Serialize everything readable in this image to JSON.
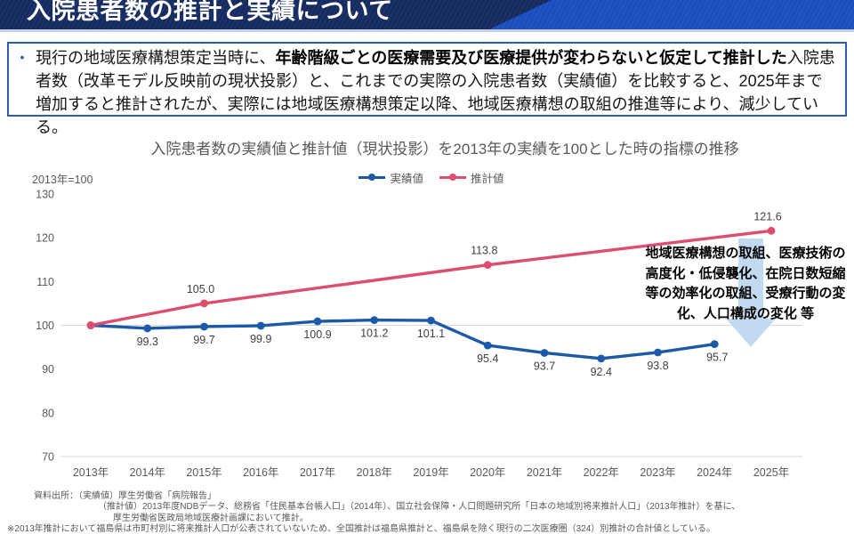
{
  "header": {
    "title": "入院患者数の推計と実績について"
  },
  "summary_box": {
    "bullet": "•",
    "text_before": "現行の地域医療構想策定当時に、",
    "text_bold": "年齢階級ごとの医療需要及び医療提供が変わらないと仮定して推計した",
    "text_after": "入院患者数（改革モデル反映前の現状投影）と、これまでの実際の入院患者数（実績値）を比較すると、2025年まで増加すると推計されたが、実際には地域医療構想策定以降、地域医療構想の取組の推進等により、減少している。"
  },
  "chart_data": {
    "type": "line",
    "title": "入院患者数の実績値と推計値（現状投影）を2013年の実績を100とした時の指標の推移",
    "baseline_note": "2013年=100",
    "categories": [
      "2013年",
      "2014年",
      "2015年",
      "2016年",
      "2017年",
      "2018年",
      "2019年",
      "2020年",
      "2021年",
      "2022年",
      "2023年",
      "2024年",
      "2025年"
    ],
    "ylim": [
      70,
      130
    ],
    "yticks": [
      70,
      80,
      90,
      100,
      110,
      120,
      130
    ],
    "gridline_at": 100,
    "legend_position": "top",
    "colors": {
      "actual": "#1c5aa8",
      "estimate": "#de4d6e",
      "grid": "#d9d9d9",
      "tick_text": "#595959",
      "label_text": "#404040"
    },
    "series": [
      {
        "name": "実績値",
        "color": "#1c5aa8",
        "values": [
          100,
          99.3,
          99.7,
          99.9,
          100.9,
          101.2,
          101.1,
          95.4,
          93.7,
          92.4,
          93.8,
          95.7,
          null
        ],
        "labels": [
          null,
          "99.3",
          "99.7",
          "99.9",
          "100.9",
          "101.2",
          "101.1",
          "95.4",
          "93.7",
          "92.4",
          "93.8",
          "95.7",
          null
        ]
      },
      {
        "name": "推計値",
        "color": "#de4d6e",
        "values": [
          100,
          null,
          105.0,
          null,
          null,
          null,
          null,
          113.8,
          null,
          null,
          null,
          null,
          121.6
        ],
        "labels": [
          null,
          null,
          "105.0",
          null,
          null,
          null,
          null,
          "113.8",
          null,
          null,
          null,
          null,
          "121.6"
        ]
      }
    ]
  },
  "annotation": {
    "text": "地域医療構想の取組、医療技術の\n高度化・低侵襲化、在院日数短縮\n等の効率化の取組、受療行動の変\n化、人口構成の変化 等",
    "arrow_color": "#bdd7ee"
  },
  "source": {
    "line1": "資料出所：（実績値）厚生労働省「病院報告」",
    "line2": "（推計値）2013年度NDBデータ、総務省「住民基本台帳人口」（2014年）、国立社会保障・人口問題研究所「日本の地域別将来推計人口」（2013年推計）を基に、",
    "line3": "厚生労働省医政局地域医療計画課において推計。",
    "line4": "※2013年推計において福島県は市町村別に将来推計人口が公表されていないため、全国推計は福島県推計と、福島県を除く現行の二次医療圏（324）別推計の合計値としている。"
  }
}
